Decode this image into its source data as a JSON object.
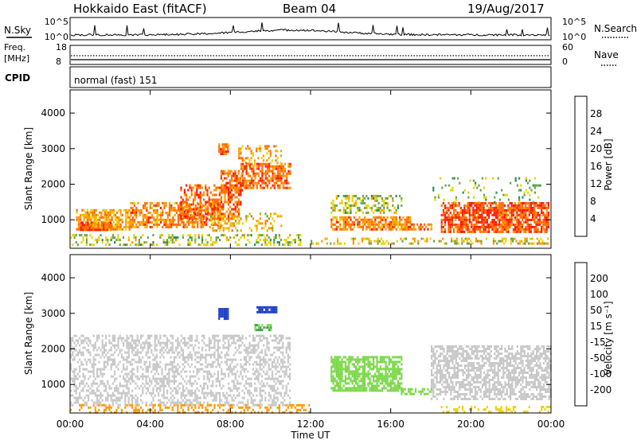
{
  "header": {
    "station": "Hokkaido East (fitACF)",
    "beam": "Beam 04",
    "date": "19/Aug/2017"
  },
  "nsky_panel": {
    "label": "N.Sky",
    "right_label": "N.Search",
    "y_ticks_left": [
      "10^5",
      "10^0"
    ],
    "y_ticks_right": [
      "10^5",
      "10^0"
    ]
  },
  "freq_panel": {
    "label_line1": "Freq.",
    "label_line2": "[MHz]",
    "y_ticks_left": [
      "18",
      "8"
    ],
    "y_ticks_right": [
      "60",
      "0"
    ],
    "right_label": "Nave"
  },
  "cpid_panel": {
    "label": "CPID",
    "mode_text": "normal (fast) 151"
  },
  "power_panel": {
    "ylabel": "Slant Range [km]",
    "colorbar_label": "Power [dB]"
  },
  "velocity_panel": {
    "ylabel": "Slant Range [km]",
    "colorbar_label": "Velocity [m s⁻¹]"
  },
  "xaxis": {
    "label": "Time UT"
  },
  "chart_data": {
    "type": "heatmap",
    "x": {
      "ticks": [
        "00:00",
        "04:00",
        "08:00",
        "12:00",
        "16:00",
        "20:00",
        "00:00"
      ],
      "range_hours": [
        0,
        24
      ]
    },
    "y": {
      "ticks": [
        1000,
        2000,
        3000,
        4000
      ],
      "range_km": [
        200,
        4650
      ]
    },
    "power": {
      "colorbar_ticks": [
        4,
        8,
        12,
        16,
        20,
        24,
        28
      ],
      "colors": [
        "#0000ff",
        "#2050b0",
        "#2e8b57",
        "#66a64a",
        "#e6d400",
        "#ff9900",
        "#ff6a00",
        "#ff1a00"
      ],
      "features": [
        {
          "t": [
            0.0,
            11.5
          ],
          "r": [
            300,
            600
          ],
          "v": 16,
          "d": 0.35
        },
        {
          "t": [
            0.3,
            3.0
          ],
          "r": [
            700,
            1300
          ],
          "v": 22,
          "d": 0.7
        },
        {
          "t": [
            0.5,
            2.0
          ],
          "r": [
            700,
            950
          ],
          "v": 26,
          "d": 0.8
        },
        {
          "t": [
            3.0,
            7.5
          ],
          "r": [
            800,
            1500
          ],
          "v": 24,
          "d": 0.6
        },
        {
          "t": [
            5.5,
            8.5
          ],
          "r": [
            1000,
            2000
          ],
          "v": 26,
          "d": 0.55
        },
        {
          "t": [
            7.5,
            8.6
          ],
          "r": [
            1800,
            2400
          ],
          "v": 26,
          "d": 0.65
        },
        {
          "t": [
            8.5,
            11.0
          ],
          "r": [
            1900,
            2600
          ],
          "v": 26,
          "d": 0.65
        },
        {
          "t": [
            7.4,
            7.9
          ],
          "r": [
            2850,
            3150
          ],
          "v": 26,
          "d": 0.8
        },
        {
          "t": [
            8.3,
            10.5
          ],
          "r": [
            2500,
            3100
          ],
          "v": 22,
          "d": 0.25
        },
        {
          "t": [
            7.0,
            10.5
          ],
          "r": [
            700,
            1200
          ],
          "v": 20,
          "d": 0.3
        },
        {
          "t": [
            13.0,
            17.0
          ],
          "r": [
            750,
            1100
          ],
          "v": 24,
          "d": 0.7
        },
        {
          "t": [
            13.0,
            16.5
          ],
          "r": [
            1200,
            1700
          ],
          "v": 16,
          "d": 0.4
        },
        {
          "t": [
            16.5,
            18.0
          ],
          "r": [
            700,
            900
          ],
          "v": 24,
          "d": 0.6
        },
        {
          "t": [
            18.5,
            23.9
          ],
          "r": [
            650,
            1500
          ],
          "v": 28,
          "d": 0.75
        },
        {
          "t": [
            18.0,
            23.5
          ],
          "r": [
            1500,
            2200
          ],
          "v": 14,
          "d": 0.15
        },
        {
          "t": [
            12.0,
            24.0
          ],
          "r": [
            300,
            500
          ],
          "v": 18,
          "d": 0.35
        }
      ]
    },
    "velocity": {
      "colorbar_ticks": [
        200,
        100,
        50,
        15,
        -15,
        -50,
        -100,
        -200
      ],
      "colors": [
        "#1a3cc8",
        "#1e6b3c",
        "#34a04a",
        "#7cd84a",
        "#c8c8c8",
        "#f0d000",
        "#ff9a00",
        "#ff5a00",
        "#ff0000"
      ],
      "features": [
        {
          "t": [
            0.0,
            11.0
          ],
          "r": [
            400,
            2400
          ],
          "v": 0,
          "d": 0.45
        },
        {
          "t": [
            7.4,
            7.9
          ],
          "r": [
            2850,
            3150
          ],
          "v": 210,
          "d": 0.85
        },
        {
          "t": [
            9.3,
            10.3
          ],
          "r": [
            3050,
            3200
          ],
          "v": 210,
          "d": 0.85
        },
        {
          "t": [
            9.2,
            10.0
          ],
          "r": [
            2550,
            2700
          ],
          "v": 50,
          "d": 0.8
        },
        {
          "t": [
            13.0,
            16.5
          ],
          "r": [
            800,
            1800
          ],
          "v": 40,
          "d": 0.7
        },
        {
          "t": [
            16.5,
            18.0
          ],
          "r": [
            700,
            900
          ],
          "v": 30,
          "d": 0.6
        },
        {
          "t": [
            18.0,
            24.0
          ],
          "r": [
            600,
            2100
          ],
          "v": 0,
          "d": 0.6
        },
        {
          "t": [
            0.0,
            12.0
          ],
          "r": [
            200,
            450
          ],
          "v": -60,
          "d": 0.35
        },
        {
          "t": [
            18.5,
            24.0
          ],
          "r": [
            200,
            400
          ],
          "v": -40,
          "d": 0.3
        }
      ]
    }
  }
}
